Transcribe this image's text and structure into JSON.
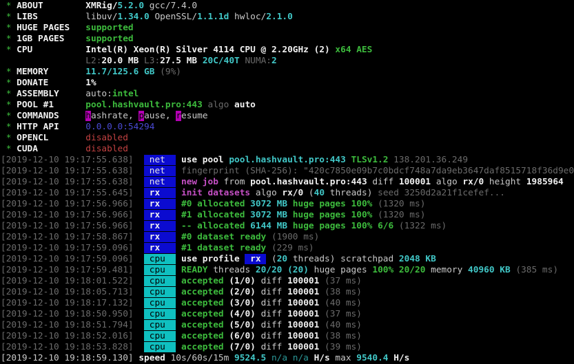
{
  "terminal": {
    "app": "XMRig/5.2.0 console output",
    "styles": {
      "g": {
        "color": "#3dbb3d",
        "bold": true,
        "name": "green-text"
      },
      "ga": {
        "color": "#3dbb3d",
        "bold": false,
        "name": "green-asterisk"
      },
      "w": {
        "color": "#c9c9c9",
        "bold": false,
        "name": "normal-text"
      },
      "wb": {
        "color": "#f1f1f1",
        "bold": true,
        "name": "bright-text"
      },
      "d": {
        "color": "#6b6b6b",
        "bold": false,
        "name": "dim-text"
      },
      "cb": {
        "color": "#41c7c7",
        "bold": true,
        "name": "cyan-value"
      },
      "cd": {
        "color": "#2b9898",
        "bold": false,
        "name": "dim-cyan-value"
      },
      "m": {
        "color": "#c44fc4",
        "bold": true,
        "name": "magenta-text"
      },
      "r": {
        "color": "#c24141",
        "bold": false,
        "name": "red-text"
      },
      "bl": {
        "color": "#4a4ad4",
        "bold": false,
        "name": "blue-text"
      },
      "hk": {
        "color": "#000000",
        "bg": "#b400b4",
        "bold": false,
        "name": "hotkey-highlight"
      },
      "bn": {
        "color": "#e6e6e6",
        "bg": "#0b0bd0",
        "bold": false,
        "name": "net-badge"
      },
      "br": {
        "color": "#f0f0f0",
        "bg": "#0b0bd0",
        "bold": true,
        "name": "rx-badge"
      },
      "bc": {
        "color": "#000000",
        "bg": "#0fc0c0",
        "bold": false,
        "name": "cpu-badge"
      },
      "bi": {
        "color": "#f0f0f0",
        "bg": "#0b0bd0",
        "bold": true,
        "name": "rx-inline-badge"
      }
    },
    "lines": [
      {
        "name": "config-line-about",
        "segs": [
          [
            "ga",
            " * "
          ],
          [
            "wb",
            "ABOUT        "
          ],
          [
            "wb",
            "XMRig/"
          ],
          [
            "cb",
            "5.2.0"
          ],
          [
            "w",
            " gcc/7.4.0"
          ]
        ]
      },
      {
        "name": "config-line-libs",
        "segs": [
          [
            "ga",
            " * "
          ],
          [
            "wb",
            "LIBS         "
          ],
          [
            "w",
            "libuv/"
          ],
          [
            "cb",
            "1.34.0"
          ],
          [
            "w",
            " OpenSSL/"
          ],
          [
            "cb",
            "1.1.1d"
          ],
          [
            "w",
            " hwloc/"
          ],
          [
            "cb",
            "2.1.0"
          ]
        ]
      },
      {
        "name": "config-line-huge-pages",
        "segs": [
          [
            "ga",
            " * "
          ],
          [
            "wb",
            "HUGE PAGES   "
          ],
          [
            "g",
            "supported"
          ]
        ]
      },
      {
        "name": "config-line-1gb-pages",
        "segs": [
          [
            "ga",
            " * "
          ],
          [
            "wb",
            "1GB PAGES    "
          ],
          [
            "g",
            "supported"
          ]
        ]
      },
      {
        "name": "config-line-cpu",
        "segs": [
          [
            "ga",
            " * "
          ],
          [
            "wb",
            "CPU          "
          ],
          [
            "wb",
            "Intel(R) Xeon(R) Silver 4114 CPU @ 2.20GHz (2) "
          ],
          [
            "g",
            "x64 AES"
          ]
        ]
      },
      {
        "name": "config-line-cpu-cache",
        "segs": [
          [
            "w",
            "                "
          ],
          [
            "d",
            "L2:"
          ],
          [
            "wb",
            "20.0 MB "
          ],
          [
            "d",
            "L3:"
          ],
          [
            "wb",
            "27.5 MB "
          ],
          [
            "cb",
            "20C/40T "
          ],
          [
            "d",
            "NUMA:"
          ],
          [
            "cb",
            "2"
          ]
        ]
      },
      {
        "name": "config-line-memory",
        "segs": [
          [
            "ga",
            " * "
          ],
          [
            "wb",
            "MEMORY       "
          ],
          [
            "cb",
            "11.7/125.6 GB "
          ],
          [
            "d",
            "(9%)"
          ]
        ]
      },
      {
        "name": "config-line-donate",
        "segs": [
          [
            "ga",
            " * "
          ],
          [
            "wb",
            "DONATE       "
          ],
          [
            "wb",
            "1%"
          ]
        ]
      },
      {
        "name": "config-line-assembly",
        "segs": [
          [
            "ga",
            " * "
          ],
          [
            "wb",
            "ASSEMBLY     "
          ],
          [
            "w",
            "auto:"
          ],
          [
            "g",
            "intel"
          ]
        ]
      },
      {
        "name": "config-line-pool",
        "segs": [
          [
            "ga",
            " * "
          ],
          [
            "wb",
            "POOL #1      "
          ],
          [
            "g",
            "pool.hashvault.pro:443 "
          ],
          [
            "d",
            "algo "
          ],
          [
            "wb",
            "auto"
          ]
        ]
      },
      {
        "name": "config-line-commands",
        "segs": [
          [
            "ga",
            " * "
          ],
          [
            "wb",
            "COMMANDS     "
          ],
          [
            "hk",
            "h"
          ],
          [
            "w",
            "ashrate, "
          ],
          [
            "hk",
            "p"
          ],
          [
            "w",
            "ause, "
          ],
          [
            "hk",
            "r"
          ],
          [
            "w",
            "esume"
          ]
        ]
      },
      {
        "name": "config-line-http-api",
        "segs": [
          [
            "ga",
            " * "
          ],
          [
            "wb",
            "HTTP API     "
          ],
          [
            "bl",
            "0.0.0.0:54294"
          ]
        ]
      },
      {
        "name": "config-line-opencl",
        "segs": [
          [
            "ga",
            " * "
          ],
          [
            "wb",
            "OPENCL       "
          ],
          [
            "r",
            "disabled"
          ]
        ]
      },
      {
        "name": "config-line-cuda",
        "segs": [
          [
            "ga",
            " * "
          ],
          [
            "wb",
            "CUDA         "
          ],
          [
            "r",
            "disabled"
          ]
        ]
      },
      {
        "name": "log-use-pool",
        "segs": [
          [
            "d",
            "[2019-12-10 19:17:55.638]  "
          ],
          [
            "bn",
            " net  "
          ],
          [
            "w",
            " "
          ],
          [
            "wb",
            "use pool "
          ],
          [
            "cb",
            "pool.hashvault.pro:443 "
          ],
          [
            "g",
            "TLSv1.2 "
          ],
          [
            "d",
            "138.201.36.249"
          ]
        ]
      },
      {
        "name": "log-fingerprint",
        "segs": [
          [
            "d",
            "[2019-12-10 19:17:55.638]  "
          ],
          [
            "bn",
            " net  "
          ],
          [
            "d",
            " fingerprint (SHA-256): \"420c7850e09b7c0bdcf748a7da9eb3647daf8515718f36d9e0"
          ]
        ]
      },
      {
        "name": "log-new-job",
        "segs": [
          [
            "d",
            "[2019-12-10 19:17:55.638]  "
          ],
          [
            "bn",
            " net  "
          ],
          [
            "w",
            " "
          ],
          [
            "m",
            "new job "
          ],
          [
            "w",
            "from "
          ],
          [
            "wb",
            "pool.hashvault.pro:443 "
          ],
          [
            "w",
            "diff "
          ],
          [
            "wb",
            "100001 "
          ],
          [
            "w",
            "algo "
          ],
          [
            "wb",
            "rx/0 "
          ],
          [
            "w",
            "height "
          ],
          [
            "wb",
            "1985964"
          ]
        ]
      },
      {
        "name": "log-init-datasets",
        "segs": [
          [
            "d",
            "[2019-12-10 19:17:55.645]  "
          ],
          [
            "br",
            " rx   "
          ],
          [
            "w",
            " "
          ],
          [
            "m",
            "init datasets "
          ],
          [
            "w",
            "algo "
          ],
          [
            "wb",
            "rx/0 "
          ],
          [
            "w",
            "("
          ],
          [
            "cb",
            "40"
          ],
          [
            "w",
            " threads) "
          ],
          [
            "d",
            "seed 3250d2a21f1cefef..."
          ]
        ]
      },
      {
        "name": "log-alloc-0",
        "segs": [
          [
            "d",
            "[2019-12-10 19:17:56.966]  "
          ],
          [
            "br",
            " rx   "
          ],
          [
            "w",
            " "
          ],
          [
            "g",
            "#0 allocated "
          ],
          [
            "cb",
            "3072 MB "
          ],
          [
            "g",
            "huge pages 100% "
          ],
          [
            "d",
            "(1320 ms)"
          ]
        ]
      },
      {
        "name": "log-alloc-1",
        "segs": [
          [
            "d",
            "[2019-12-10 19:17:56.966]  "
          ],
          [
            "br",
            " rx   "
          ],
          [
            "w",
            " "
          ],
          [
            "g",
            "#1 allocated "
          ],
          [
            "cb",
            "3072 MB "
          ],
          [
            "g",
            "huge pages 100% "
          ],
          [
            "d",
            "(1320 ms)"
          ]
        ]
      },
      {
        "name": "log-alloc-total",
        "segs": [
          [
            "d",
            "[2019-12-10 19:17:56.966]  "
          ],
          [
            "br",
            " rx   "
          ],
          [
            "w",
            " "
          ],
          [
            "g",
            "-- allocated "
          ],
          [
            "cb",
            "6144 MB "
          ],
          [
            "g",
            "huge pages 100% 6/6 "
          ],
          [
            "d",
            "(1322 ms)"
          ]
        ]
      },
      {
        "name": "log-dataset-ready-0",
        "segs": [
          [
            "d",
            "[2019-12-10 19:17:58.867]  "
          ],
          [
            "br",
            " rx   "
          ],
          [
            "w",
            " "
          ],
          [
            "g",
            "#0 dataset ready "
          ],
          [
            "d",
            "(1900 ms)"
          ]
        ]
      },
      {
        "name": "log-dataset-ready-1",
        "segs": [
          [
            "d",
            "[2019-12-10 19:17:59.096]  "
          ],
          [
            "br",
            " rx   "
          ],
          [
            "w",
            " "
          ],
          [
            "g",
            "#1 dataset ready "
          ],
          [
            "d",
            "(229 ms)"
          ]
        ]
      },
      {
        "name": "log-use-profile",
        "segs": [
          [
            "d",
            "[2019-12-10 19:17:59.096]  "
          ],
          [
            "bc",
            " cpu  "
          ],
          [
            "w",
            " "
          ],
          [
            "wb",
            "use profile "
          ],
          [
            "bi",
            " rx "
          ],
          [
            "w",
            " ("
          ],
          [
            "cb",
            "20"
          ],
          [
            "w",
            " threads) scratchpad "
          ],
          [
            "cb",
            "2048 KB"
          ]
        ]
      },
      {
        "name": "log-ready-threads",
        "segs": [
          [
            "d",
            "[2019-12-10 19:17:59.481]  "
          ],
          [
            "bc",
            " cpu  "
          ],
          [
            "w",
            " "
          ],
          [
            "g",
            "READY "
          ],
          [
            "w",
            "threads "
          ],
          [
            "cb",
            "20/20 (20) "
          ],
          [
            "w",
            "huge pages "
          ],
          [
            "g",
            "100% 20/20 "
          ],
          [
            "w",
            "memory "
          ],
          [
            "cb",
            "40960 KB "
          ],
          [
            "d",
            "(385 ms)"
          ]
        ]
      },
      {
        "name": "log-accepted-1",
        "segs": [
          [
            "d",
            "[2019-12-10 19:18:01.522]  "
          ],
          [
            "bc",
            " cpu  "
          ],
          [
            "w",
            " "
          ],
          [
            "g",
            "accepted "
          ],
          [
            "wb",
            "(1/0) "
          ],
          [
            "w",
            "diff "
          ],
          [
            "wb",
            "100001 "
          ],
          [
            "d",
            "(37 ms)"
          ]
        ]
      },
      {
        "name": "log-accepted-2",
        "segs": [
          [
            "d",
            "[2019-12-10 19:18:05.713]  "
          ],
          [
            "bc",
            " cpu  "
          ],
          [
            "w",
            " "
          ],
          [
            "g",
            "accepted "
          ],
          [
            "wb",
            "(2/0) "
          ],
          [
            "w",
            "diff "
          ],
          [
            "wb",
            "100001 "
          ],
          [
            "d",
            "(38 ms)"
          ]
        ]
      },
      {
        "name": "log-accepted-3",
        "segs": [
          [
            "d",
            "[2019-12-10 19:18:17.132]  "
          ],
          [
            "bc",
            " cpu  "
          ],
          [
            "w",
            " "
          ],
          [
            "g",
            "accepted "
          ],
          [
            "wb",
            "(3/0) "
          ],
          [
            "w",
            "diff "
          ],
          [
            "wb",
            "100001 "
          ],
          [
            "d",
            "(40 ms)"
          ]
        ]
      },
      {
        "name": "log-accepted-4",
        "segs": [
          [
            "d",
            "[2019-12-10 19:18:50.950]  "
          ],
          [
            "bc",
            " cpu  "
          ],
          [
            "w",
            " "
          ],
          [
            "g",
            "accepted "
          ],
          [
            "wb",
            "(4/0) "
          ],
          [
            "w",
            "diff "
          ],
          [
            "wb",
            "100001 "
          ],
          [
            "d",
            "(37 ms)"
          ]
        ]
      },
      {
        "name": "log-accepted-5",
        "segs": [
          [
            "d",
            "[2019-12-10 19:18:51.794]  "
          ],
          [
            "bc",
            " cpu  "
          ],
          [
            "w",
            " "
          ],
          [
            "g",
            "accepted "
          ],
          [
            "wb",
            "(5/0) "
          ],
          [
            "w",
            "diff "
          ],
          [
            "wb",
            "100001 "
          ],
          [
            "d",
            "(40 ms)"
          ]
        ]
      },
      {
        "name": "log-accepted-6",
        "segs": [
          [
            "d",
            "[2019-12-10 19:18:52.016]  "
          ],
          [
            "bc",
            " cpu  "
          ],
          [
            "w",
            " "
          ],
          [
            "g",
            "accepted "
          ],
          [
            "wb",
            "(6/0) "
          ],
          [
            "w",
            "diff "
          ],
          [
            "wb",
            "100001 "
          ],
          [
            "d",
            "(38 ms)"
          ]
        ]
      },
      {
        "name": "log-accepted-7",
        "segs": [
          [
            "d",
            "[2019-12-10 19:18:53.828]  "
          ],
          [
            "bc",
            " cpu  "
          ],
          [
            "w",
            " "
          ],
          [
            "g",
            "accepted "
          ],
          [
            "wb",
            "(7/0) "
          ],
          [
            "w",
            "diff "
          ],
          [
            "wb",
            "100001 "
          ],
          [
            "d",
            "(39 ms)"
          ]
        ]
      },
      {
        "name": "log-speed",
        "segs": [
          [
            "w",
            "[2019-12-10 19:18:59.130] "
          ],
          [
            "wb",
            "speed "
          ],
          [
            "w",
            "10s/60s/15m "
          ],
          [
            "cb",
            "9524.5 "
          ],
          [
            "cd",
            "n/a n/a "
          ],
          [
            "wb",
            "H/s "
          ],
          [
            "w",
            "max "
          ],
          [
            "cb",
            "9540.4 "
          ],
          [
            "wb",
            "H/s"
          ]
        ]
      }
    ]
  }
}
